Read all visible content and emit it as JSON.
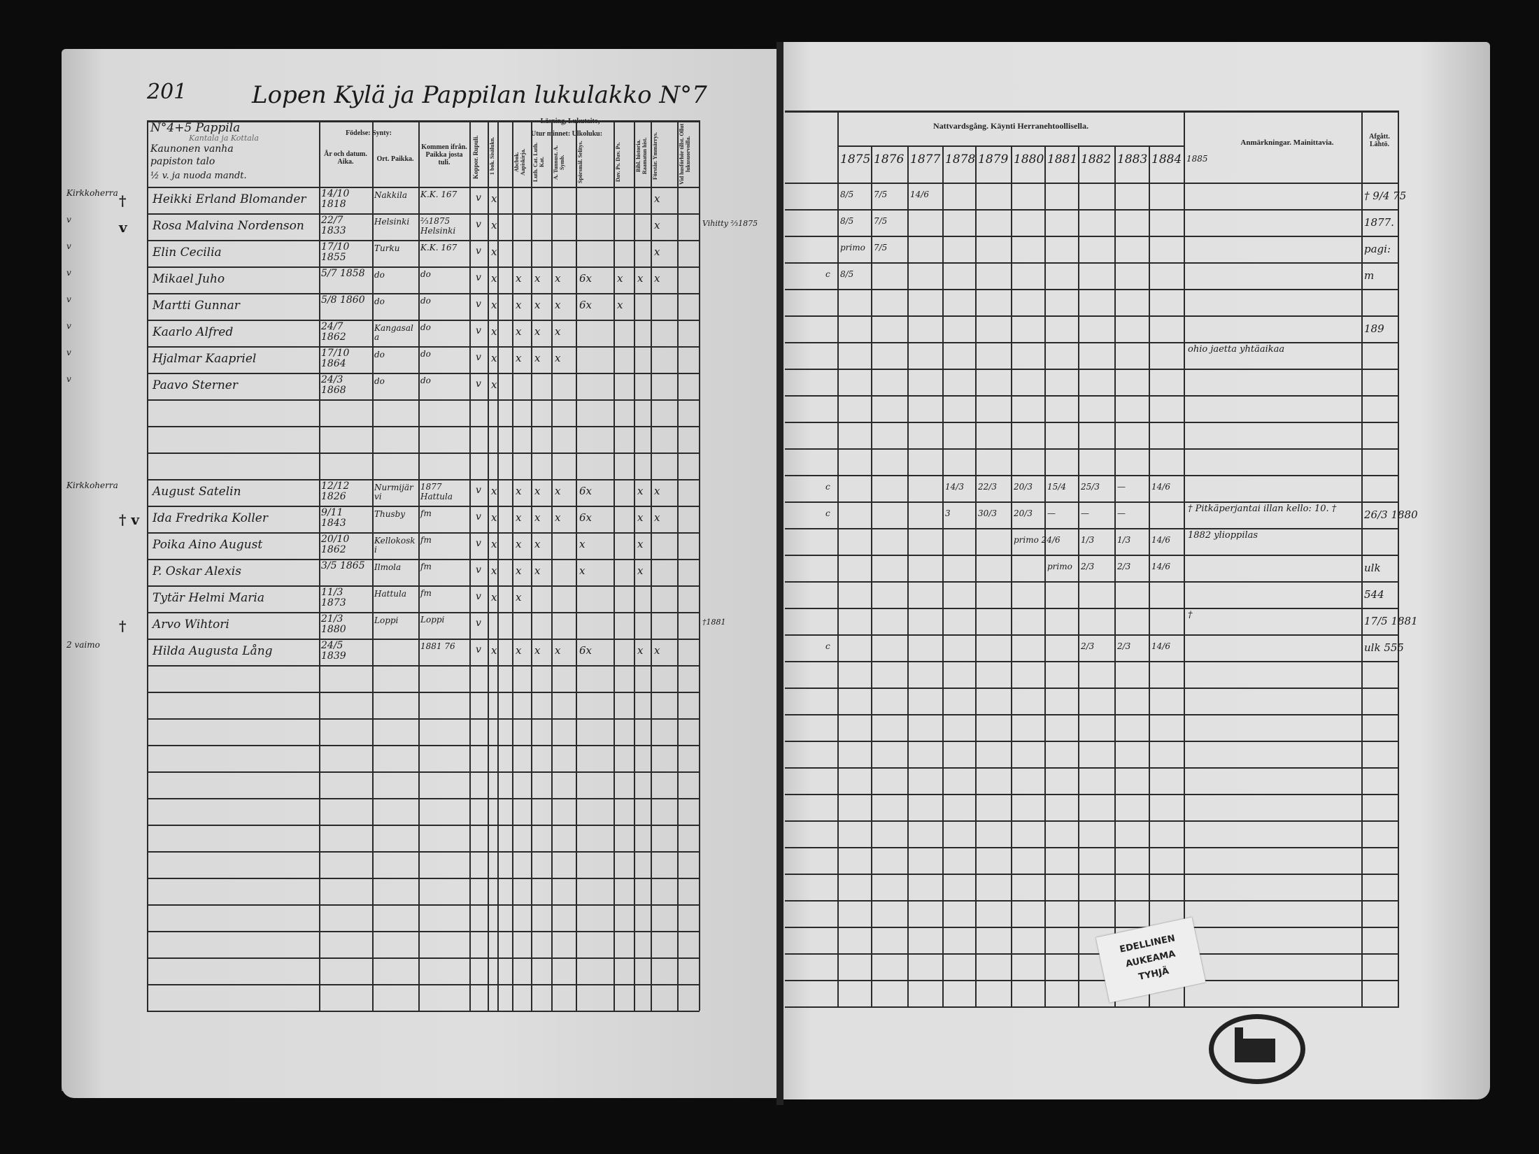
{
  "left_page": {
    "page_number": "201",
    "title": "Lopen Kylä ja Pappilan lukulakko N°7",
    "household_header": [
      "N°4+5 Pappila",
      "Kantala ja Kottala",
      "Kaunonen vanha",
      "papiston talo",
      "½ v. ja nuoda mandt."
    ],
    "headers": {
      "birth": "Födelse: Synty:",
      "year": "År och datum. Aika.",
      "place": "Ort. Paikka.",
      "came_from": "Kommen ifrån. Paikka josta tuli.",
      "koppor": "Koppor. Rupuli.",
      "reading": "Läsning, Lukutaito,",
      "by_heart": "Utur minnet: Ulkoluku:",
      "sub": [
        "1 bok. Sisälukn.",
        "Abcbok. Aapiskirja.",
        "Luth. Cat. Luth. Kat.",
        "A. Tunnust. A. Symb.",
        "Spörsmål. Selitys.",
        "Dav. Ps. Dav. Ps.",
        "Bibl. historia. Raamatun hist.",
        "Förstår. Ymmärrys.",
        "Vid husförhör tillst. Ollut lukusuorvoilla."
      ]
    },
    "rows": [
      {
        "prefix": "Kirkkoherra",
        "mark": "†",
        "name": "Heikki Erland Blomander",
        "date": "14/10 1818",
        "place": "Nakkila",
        "from": "K.K. 167",
        "koppor": "v",
        "marks": [
          "x",
          "",
          "",
          "",
          "",
          "",
          "",
          "x"
        ],
        "note": ""
      },
      {
        "prefix": "v",
        "mark": "v",
        "name": "Rosa Malvina Nordenson",
        "date": "22/7 1833",
        "place": "Helsinki",
        "from": "⅔1875 Helsinki",
        "koppor": "v",
        "marks": [
          "x",
          "",
          "",
          "",
          "",
          "",
          "",
          "x"
        ],
        "note": "Vihitty ⅔1875"
      },
      {
        "prefix": "v",
        "mark": "",
        "name": "Elin Cecilia",
        "date": "17/10 1855",
        "place": "Turku",
        "from": "K.K. 167",
        "koppor": "v",
        "marks": [
          "x",
          "",
          "",
          "",
          "",
          "",
          "",
          "x"
        ],
        "note": ""
      },
      {
        "prefix": "v",
        "mark": "",
        "name": "Mikael Juho",
        "date": "5/7 1858",
        "place": "do",
        "from": "do",
        "koppor": "v",
        "marks": [
          "x",
          "x",
          "x",
          "x",
          "6x",
          "x",
          "x",
          "x"
        ],
        "note": ""
      },
      {
        "prefix": "v",
        "mark": "",
        "name": "Martti Gunnar",
        "date": "5/8 1860",
        "place": "do",
        "from": "do",
        "koppor": "v",
        "marks": [
          "x",
          "x",
          "x",
          "x",
          "6x",
          "x",
          "",
          ""
        ],
        "note": ""
      },
      {
        "prefix": "v",
        "mark": "",
        "name": "Kaarlo Alfred",
        "date": "24/7 1862",
        "place": "Kangasala",
        "from": "do",
        "koppor": "v",
        "marks": [
          "x",
          "x",
          "x",
          "x",
          "",
          "",
          "",
          ""
        ],
        "note": ""
      },
      {
        "prefix": "v",
        "mark": "",
        "name": "Hjalmar Kaapriel",
        "date": "17/10 1864",
        "place": "do",
        "from": "do",
        "koppor": "v",
        "marks": [
          "x",
          "x",
          "x",
          "x",
          "",
          "",
          "",
          ""
        ],
        "note": ""
      },
      {
        "prefix": "v",
        "mark": "",
        "name": "Paavo Sterner",
        "date": "24/3 1868",
        "place": "do",
        "from": "do",
        "koppor": "v",
        "marks": [
          "x",
          "",
          "",
          "",
          "",
          "",
          "",
          ""
        ],
        "note": ""
      },
      {
        "prefix": "",
        "mark": "",
        "name": "",
        "date": "",
        "place": "",
        "from": "",
        "koppor": "",
        "marks": [],
        "note": ""
      },
      {
        "prefix": "",
        "mark": "",
        "name": "",
        "date": "",
        "place": "",
        "from": "",
        "koppor": "",
        "marks": [],
        "note": ""
      },
      {
        "prefix": "",
        "mark": "",
        "name": "",
        "date": "",
        "place": "",
        "from": "",
        "koppor": "",
        "marks": [],
        "note": ""
      },
      {
        "prefix": "Kirkkoherra",
        "mark": "",
        "name": "August Satelin",
        "date": "12/12 1826",
        "place": "Nurmijärvi",
        "from": "1877 Hattula",
        "koppor": "v",
        "marks": [
          "x",
          "x",
          "x",
          "x",
          "6x",
          "",
          "x",
          "x"
        ],
        "note": ""
      },
      {
        "prefix": "",
        "mark": "† v",
        "name": "Ida Fredrika Koller",
        "date": "9/11 1843",
        "place": "Thusby",
        "from": "fm",
        "koppor": "v",
        "marks": [
          "x",
          "x",
          "x",
          "x",
          "6x",
          "",
          "x",
          "x"
        ],
        "note": ""
      },
      {
        "prefix": "",
        "mark": "",
        "name": "Poika Aino August",
        "date": "20/10 1862",
        "place": "Kellokoski",
        "from": "fm",
        "koppor": "v",
        "marks": [
          "x",
          "x",
          "x",
          "",
          "x",
          "",
          "x",
          ""
        ],
        "note": ""
      },
      {
        "prefix": "",
        "mark": "",
        "name": "P. Oskar Alexis",
        "date": "3/5 1865",
        "place": "Ilmola",
        "from": "fm",
        "koppor": "v",
        "marks": [
          "x",
          "x",
          "x",
          "",
          "x",
          "",
          "x",
          ""
        ],
        "note": ""
      },
      {
        "prefix": "",
        "mark": "",
        "name": "Tytär Helmi Maria",
        "date": "11/3 1873",
        "place": "Hattula",
        "from": "fm",
        "koppor": "v",
        "marks": [
          "x",
          "x",
          "",
          "",
          "",
          "",
          "",
          ""
        ],
        "note": ""
      },
      {
        "prefix": "",
        "mark": "†",
        "name": "Arvo Wihtori",
        "date": "21/3 1880",
        "place": "Loppi",
        "from": "Loppi",
        "koppor": "v",
        "marks": [
          "",
          "",
          "",
          "",
          "",
          "",
          "",
          ""
        ],
        "note": "†1881"
      },
      {
        "prefix": "2 vaimo",
        "mark": "",
        "name": "Hilda Augusta Lång",
        "date": "24/5 1839",
        "place": "",
        "from": "1881 76",
        "koppor": "v",
        "marks": [
          "x",
          "x",
          "x",
          "x",
          "6x",
          "",
          "x",
          "x"
        ],
        "note": ""
      }
    ]
  },
  "right_page": {
    "header": "Nattvardsgång. Käynti Herranehtoollisella.",
    "years": [
      "1875",
      "1876",
      "1877",
      "1878",
      "1879",
      "1880",
      "1881",
      "1882",
      "1883",
      "1884"
    ],
    "remarks_header": "Anmärkningar. Mainittavia.",
    "remarks_year": "1885",
    "departed_header": "Afgått. Lähtö.",
    "rows": [
      {
        "pre": "",
        "comm": [
          "8/5",
          "7/5",
          "14/6",
          "",
          "",
          "",
          "",
          "",
          "",
          ""
        ],
        "remark": "",
        "departed": "† 9/4 75"
      },
      {
        "pre": "",
        "comm": [
          "8/5",
          "7/5",
          "",
          "",
          "",
          "",
          "",
          "",
          "",
          ""
        ],
        "remark": "",
        "departed": "1877."
      },
      {
        "pre": "",
        "comm": [
          "primo",
          "7/5",
          "",
          "",
          "",
          "",
          "",
          "",
          "",
          ""
        ],
        "remark": "",
        "departed": "pagi:"
      },
      {
        "pre": "c",
        "comm": [
          "8/5",
          "",
          "",
          "",
          "",
          "",
          "",
          "",
          "",
          ""
        ],
        "remark": "",
        "departed": "m"
      },
      {
        "pre": "",
        "comm": [
          "",
          "",
          "",
          "",
          "",
          "",
          "",
          "",
          "",
          ""
        ],
        "remark": "",
        "departed": ""
      },
      {
        "pre": "",
        "comm": [
          "",
          "",
          "",
          "",
          "",
          "",
          "",
          "",
          "",
          ""
        ],
        "remark": "",
        "departed": "189"
      },
      {
        "pre": "",
        "comm": [
          "",
          "",
          "",
          "",
          "",
          "",
          "",
          "",
          "",
          ""
        ],
        "remark": "ohio jaetta yhtäaikaa",
        "departed": ""
      },
      {
        "pre": "",
        "comm": [
          "",
          "",
          "",
          "",
          "",
          "",
          "",
          "",
          "",
          ""
        ],
        "remark": "",
        "departed": ""
      },
      {
        "pre": "",
        "comm": [],
        "remark": "",
        "departed": ""
      },
      {
        "pre": "",
        "comm": [],
        "remark": "",
        "departed": ""
      },
      {
        "pre": "",
        "comm": [],
        "remark": "",
        "departed": ""
      },
      {
        "pre": "c",
        "comm": [
          "",
          "",
          "",
          "14/3",
          "22/3",
          "20/3",
          "15/4",
          "25/3",
          "—",
          "14/6"
        ],
        "remark": "",
        "departed": ""
      },
      {
        "pre": "c",
        "comm": [
          "",
          "",
          "",
          "3",
          "30/3",
          "20/3",
          "—",
          "—",
          "—",
          ""
        ],
        "remark": "† Pitkäperjantai illan kello: 10. †",
        "departed": "26/3 1880"
      },
      {
        "pre": "",
        "comm": [
          "",
          "",
          "",
          "",
          "",
          "primo 24/6",
          "",
          "1/3",
          "1/3",
          "14/6"
        ],
        "remark": "1882 ylioppilas",
        "departed": ""
      },
      {
        "pre": "",
        "comm": [
          "",
          "",
          "",
          "",
          "",
          "",
          "primo",
          "2/3",
          "2/3",
          "14/6"
        ],
        "remark": "",
        "departed": "ulk"
      },
      {
        "pre": "",
        "comm": [
          "",
          "",
          "",
          "",
          "",
          "",
          "",
          "",
          "",
          ""
        ],
        "remark": "",
        "departed": "544"
      },
      {
        "pre": "",
        "comm": [
          "",
          "",
          "",
          "",
          "",
          "",
          "",
          "",
          "",
          ""
        ],
        "remark": "†",
        "departed": "17/5 1881"
      },
      {
        "pre": "c",
        "comm": [
          "",
          "",
          "",
          "",
          "",
          "",
          "",
          "2/3",
          "2/3",
          "14/6"
        ],
        "remark": "",
        "departed": "ulk 555"
      }
    ]
  },
  "label": [
    "EDELLINEN",
    "AUKEAMA",
    "TYHJÄ"
  ],
  "seal": "church-seal"
}
